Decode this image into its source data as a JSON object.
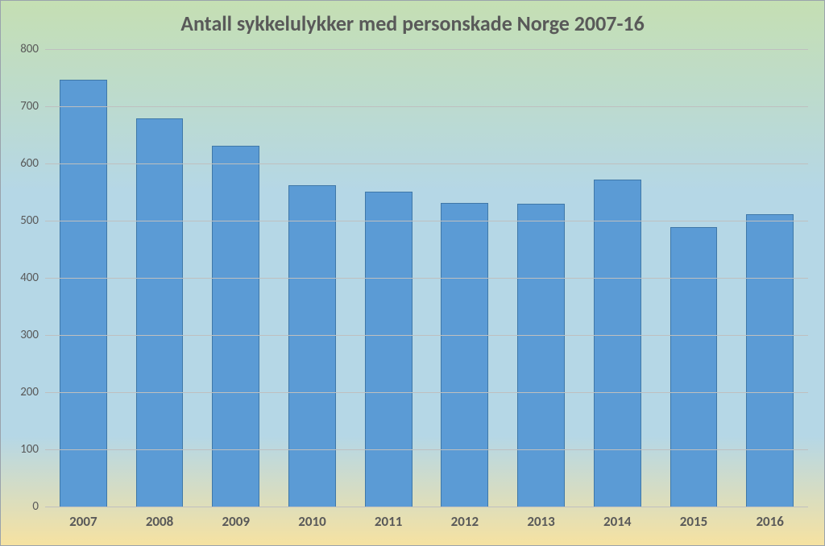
{
  "chart": {
    "type": "bar",
    "title": "Antall sykkelulykker med personskade Norge 2007-16",
    "title_fontsize": 26,
    "title_fontweight": "bold",
    "title_color": "#595959",
    "categories": [
      "2007",
      "2008",
      "2009",
      "2010",
      "2011",
      "2012",
      "2013",
      "2014",
      "2015",
      "2016"
    ],
    "values": [
      745,
      678,
      630,
      560,
      550,
      530,
      528,
      570,
      488,
      510
    ],
    "bar_color": "#5b9bd5",
    "bar_border_color": "#3f78a8",
    "bar_width": 0.6,
    "ylim": [
      0,
      800
    ],
    "ytick_step": 100,
    "yticks": [
      "0",
      "100",
      "200",
      "300",
      "400",
      "500",
      "600",
      "700",
      "800"
    ],
    "y_label_fontsize": 15,
    "y_label_color": "#595959",
    "x_label_fontsize": 17,
    "x_label_fontweight": "bold",
    "x_label_color": "#595959",
    "grid_color": "#bfbfbf",
    "background_gradient": {
      "top": "#c5dfb3",
      "mid_upper": "#b5d7e6",
      "mid_lower": "#b5d7e6",
      "bottom": "#f6e2a1"
    },
    "outer_border_color": "#9aa3ac"
  }
}
